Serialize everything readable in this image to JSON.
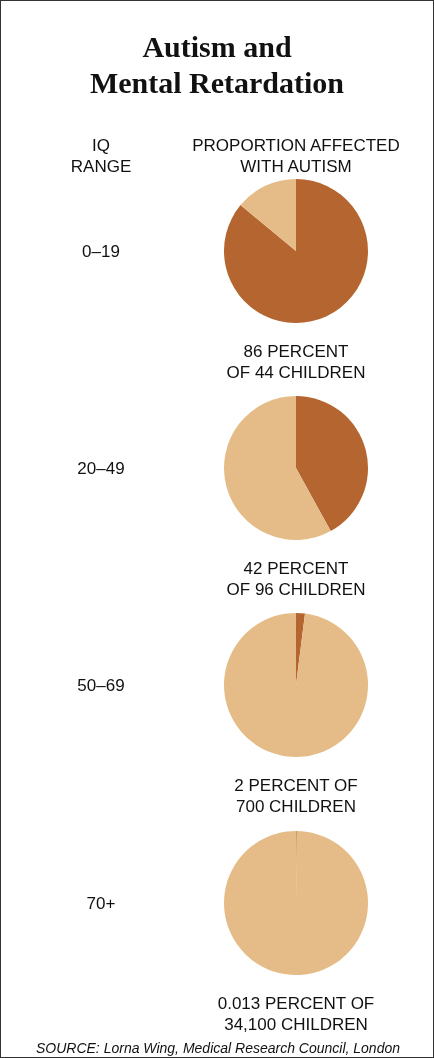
{
  "chart_data": [
    {
      "type": "pie",
      "title": "Autism and\nMental Retardation",
      "ylabel": "IQ\nRANGE",
      "xlabel": "PROPORTION AFFECTED\nWITH AUTISM",
      "subtitle": "0–19",
      "categories": [
        null,
        null
      ],
      "values": [
        86,
        14
      ],
      "colors": [
        "#b5652f",
        "#e5bc87"
      ],
      "annotations": [
        "86 PERCENT\nOF 44 CHILDREN"
      ]
    },
    {
      "type": "pie",
      "subtitle": "20–49",
      "categories": [
        null,
        null
      ],
      "values": [
        42,
        58
      ],
      "colors": [
        "#b5652f",
        "#e5bc87"
      ],
      "annotations": [
        "42 PERCENT\nOF 96 CHILDREN"
      ]
    },
    {
      "type": "pie",
      "subtitle": "50–69",
      "categories": [
        null,
        null
      ],
      "values": [
        2,
        98
      ],
      "colors": [
        "#b5652f",
        "#e5bc87"
      ],
      "annotations": [
        "2 PERCENT OF\n700 CHILDREN"
      ]
    },
    {
      "type": "pie",
      "subtitle": "70+",
      "categories": [
        null,
        null
      ],
      "values": [
        0.013,
        99.987
      ],
      "colors": [
        "#b5652f",
        "#e5bc87"
      ],
      "annotations": [
        "0.013 PERCENT OF\n34,100 CHILDREN",
        "SOURCE: Lorna Wing, Medical Research Council, London"
      ]
    }
  ]
}
